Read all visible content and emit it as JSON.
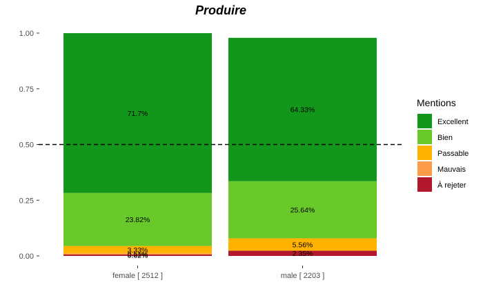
{
  "chart_data": {
    "type": "bar",
    "stacked": true,
    "title": "Produire",
    "xlabel": "",
    "ylabel": "",
    "ylim": [
      0,
      1
    ],
    "y_ticks": [
      "0.00",
      "0.25",
      "0.50",
      "0.75",
      "1.00"
    ],
    "y_tick_values": [
      0,
      0.25,
      0.5,
      0.75,
      1.0
    ],
    "categories": [
      "female [ 2512 ]",
      "male [ 2203 ]"
    ],
    "reference_line": {
      "y": 0.5,
      "style": "dashed"
    },
    "legend_title": "Mentions",
    "legend_position": "right",
    "series": [
      {
        "name": "À rejeter",
        "color": "#b2182b",
        "values": [
          0.0062,
          0.0235
        ],
        "labels": [
          "0.62%",
          "2.35%"
        ]
      },
      {
        "name": "Mauvais",
        "color": "#fc9c4a",
        "values": [
          0.0051,
          0.0
        ],
        "labels": [
          "0.51%",
          ""
        ]
      },
      {
        "name": "Passable",
        "color": "#ffb300",
        "values": [
          0.0333,
          0.0556
        ],
        "labels": [
          "3.33%",
          "5.56%"
        ]
      },
      {
        "name": "Bien",
        "color": "#6ac92a",
        "values": [
          0.2382,
          0.2564
        ],
        "labels": [
          "23.82%",
          "25.64%"
        ]
      },
      {
        "name": "Excellent",
        "color": "#12961b",
        "values": [
          0.717,
          0.6433
        ],
        "labels": [
          "71.7%",
          "64.33%"
        ]
      }
    ],
    "legend_order": [
      "Excellent",
      "Bien",
      "Passable",
      "Mauvais",
      "À rejeter"
    ]
  }
}
